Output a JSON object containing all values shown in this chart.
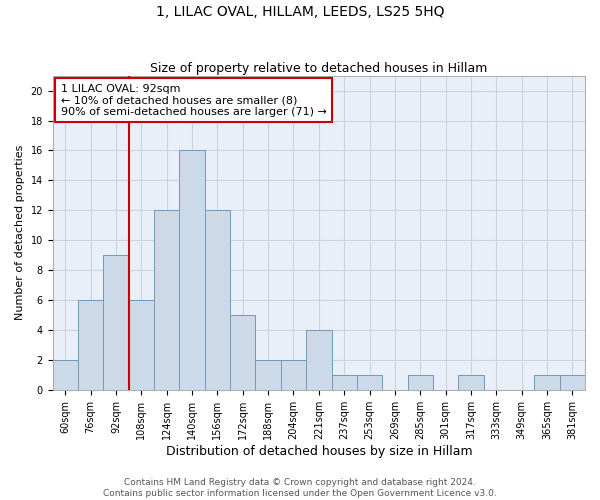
{
  "title": "1, LILAC OVAL, HILLAM, LEEDS, LS25 5HQ",
  "subtitle": "Size of property relative to detached houses in Hillam",
  "xlabel": "Distribution of detached houses by size in Hillam",
  "ylabel": "Number of detached properties",
  "categories": [
    "60sqm",
    "76sqm",
    "92sqm",
    "108sqm",
    "124sqm",
    "140sqm",
    "156sqm",
    "172sqm",
    "188sqm",
    "204sqm",
    "221sqm",
    "237sqm",
    "253sqm",
    "269sqm",
    "285sqm",
    "301sqm",
    "317sqm",
    "333sqm",
    "349sqm",
    "365sqm",
    "381sqm"
  ],
  "values": [
    2,
    6,
    9,
    6,
    12,
    16,
    12,
    5,
    2,
    2,
    4,
    1,
    1,
    0,
    1,
    0,
    1,
    0,
    0,
    1,
    1
  ],
  "bar_color": "#ccd9e8",
  "bar_edge_color": "#7099bb",
  "property_line_index": 2.5,
  "property_line_color": "#cc0000",
  "annotation_text": "1 LILAC OVAL: 92sqm\n← 10% of detached houses are smaller (8)\n90% of semi-detached houses are larger (71) →",
  "annotation_box_color": "#ffffff",
  "annotation_box_edge_color": "#cc0000",
  "ylim": [
    0,
    21
  ],
  "yticks": [
    0,
    2,
    4,
    6,
    8,
    10,
    12,
    14,
    16,
    18,
    20
  ],
  "grid_color": "#c8d4e0",
  "bg_color": "#e8eff8",
  "footer_line1": "Contains HM Land Registry data © Crown copyright and database right 2024.",
  "footer_line2": "Contains public sector information licensed under the Open Government Licence v3.0.",
  "title_fontsize": 10,
  "subtitle_fontsize": 9,
  "xlabel_fontsize": 9,
  "ylabel_fontsize": 8,
  "tick_fontsize": 7,
  "annotation_fontsize": 8,
  "footer_fontsize": 6.5
}
